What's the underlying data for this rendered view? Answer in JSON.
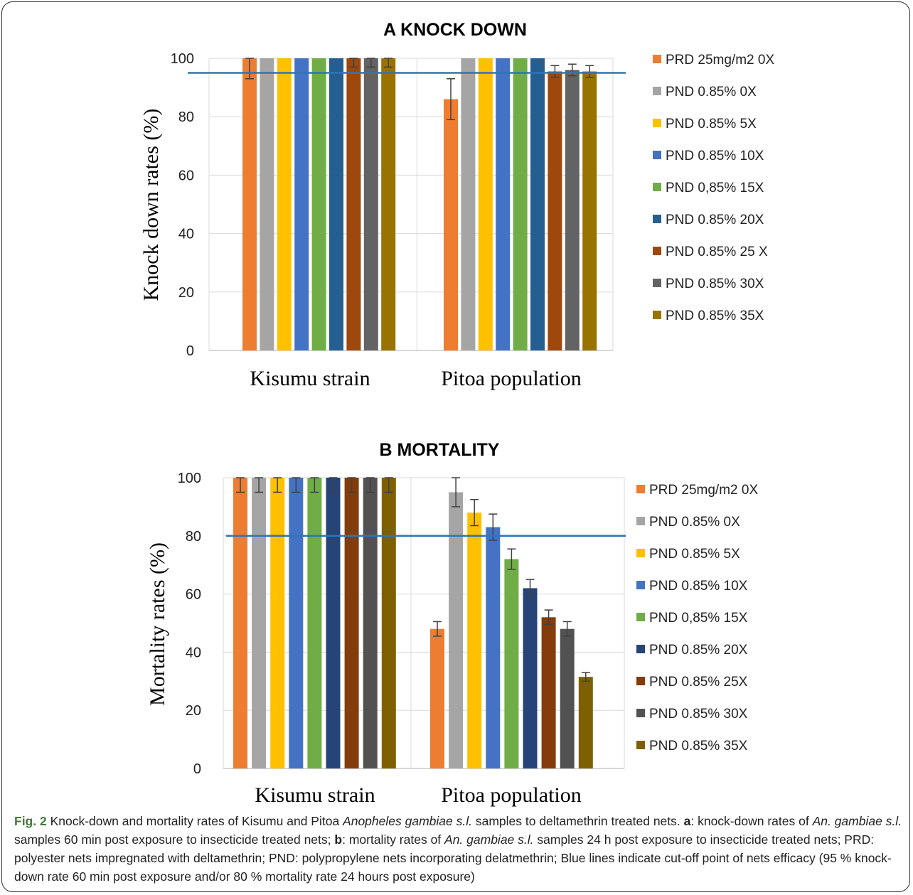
{
  "chart_data": [
    {
      "type": "bar",
      "title": "A  KNOCK DOWN",
      "ylabel": "Knock down rates (%)",
      "xlabel": "",
      "ylim": [
        0,
        100
      ],
      "yticks": [
        0,
        20,
        40,
        60,
        80,
        100
      ],
      "categories": [
        "Kisumu strain",
        "Pitoa population"
      ],
      "grid": true,
      "legend": "right",
      "cutoff": 95,
      "series": [
        {
          "name": "PRD 25mg/m2 0X",
          "color": "#ed7d31",
          "values": [
            100,
            86
          ],
          "err": [
            7,
            7
          ]
        },
        {
          "name": "PND  0.85% 0X",
          "color": "#a5a5a5",
          "values": [
            100,
            100
          ],
          "err": [
            0,
            0
          ]
        },
        {
          "name": "PND 0.85% 5X",
          "color": "#ffc000",
          "values": [
            100,
            100
          ],
          "err": [
            0,
            0
          ]
        },
        {
          "name": "PND 0.85% 10X",
          "color": "#4472c4",
          "values": [
            100,
            100
          ],
          "err": [
            0,
            0
          ]
        },
        {
          "name": "PND  0,85% 15X",
          "color": "#70ad47",
          "values": [
            100,
            100
          ],
          "err": [
            0,
            0
          ]
        },
        {
          "name": "PND  0.85% 20X",
          "color": "#255e91",
          "values": [
            100,
            100
          ],
          "err": [
            0,
            0
          ]
        },
        {
          "name": "PND  0.85% 25 X",
          "color": "#9e480e",
          "values": [
            100,
            95.5
          ],
          "err": [
            3,
            2
          ]
        },
        {
          "name": "PND 0.85% 30X",
          "color": "#636363",
          "values": [
            100,
            96
          ],
          "err": [
            3,
            2
          ]
        },
        {
          "name": "PND  0.85% 35X",
          "color": "#997300",
          "values": [
            100,
            95.5
          ],
          "err": [
            3,
            2
          ]
        }
      ]
    },
    {
      "type": "bar",
      "title": "B  MORTALITY",
      "ylabel": "Mortality rates (%)",
      "xlabel": "",
      "ylim": [
        0,
        100
      ],
      "yticks": [
        0,
        20,
        40,
        60,
        80,
        100
      ],
      "categories": [
        "Kisumu strain",
        "Pitoa population"
      ],
      "grid": true,
      "legend": "right",
      "cutoff": 80,
      "series": [
        {
          "name": "PRD 25mg/m2 0X",
          "color": "#ed7d31",
          "values": [
            100,
            48
          ],
          "err": [
            5,
            2.5
          ]
        },
        {
          "name": "PND  0.85% 0X",
          "color": "#a5a5a5",
          "values": [
            100,
            95
          ],
          "err": [
            5,
            5
          ]
        },
        {
          "name": "PND 0.85% 5X",
          "color": "#ffc000",
          "values": [
            100,
            88
          ],
          "err": [
            5,
            4.5
          ]
        },
        {
          "name": "PND 0.85% 10X",
          "color": "#4472c4",
          "values": [
            100,
            83
          ],
          "err": [
            5,
            4.5
          ]
        },
        {
          "name": "PND  0,85% 15X",
          "color": "#70ad47",
          "values": [
            100,
            72
          ],
          "err": [
            5,
            3.5
          ]
        },
        {
          "name": "PND  0.85% 20X",
          "color": "#264478",
          "values": [
            100,
            62
          ],
          "err": [
            5,
            3
          ]
        },
        {
          "name": "PND  0.85% 25X",
          "color": "#843c0c",
          "values": [
            100,
            52
          ],
          "err": [
            5,
            2.5
          ]
        },
        {
          "name": "PND 0.85% 30X",
          "color": "#525252",
          "values": [
            100,
            48
          ],
          "err": [
            5,
            2.5
          ]
        },
        {
          "name": "PND  0.85% 35X",
          "color": "#7f6000",
          "values": [
            100,
            31.5
          ],
          "err": [
            5,
            1.5
          ]
        }
      ]
    }
  ],
  "caption": {
    "label": "Fig. 2",
    "parts": [
      {
        "t": "Knock-down and mortality rates of Kisumu and Pitoa ",
        "s": "n"
      },
      {
        "t": "Anopheles gambiae s.l.",
        "s": "i"
      },
      {
        "t": " samples to deltamethrin treated nets. ",
        "s": "n"
      },
      {
        "t": "a",
        "s": "b"
      },
      {
        "t": ": knock-down rates of ",
        "s": "n"
      },
      {
        "t": "An. gambiae s.l.",
        "s": "i"
      },
      {
        "t": " samples 60 min post exposure to insecticide treated nets; ",
        "s": "n"
      },
      {
        "t": "b",
        "s": "b"
      },
      {
        "t": ": mortality rates of ",
        "s": "n"
      },
      {
        "t": "An. gambiae s.l.",
        "s": "i"
      },
      {
        "t": " samples 24 h post exposure to insecticide treated nets; PRD: polyester nets impregnated with deltamethrin; PND: polypropylene nets incorporating delatmethrin; Blue lines indicate cut-off point of nets efficacy (95 % knock-down rate 60 min post exposure and/or 80 % mortality rate 24 hours post exposure)",
        "s": "n"
      }
    ]
  }
}
